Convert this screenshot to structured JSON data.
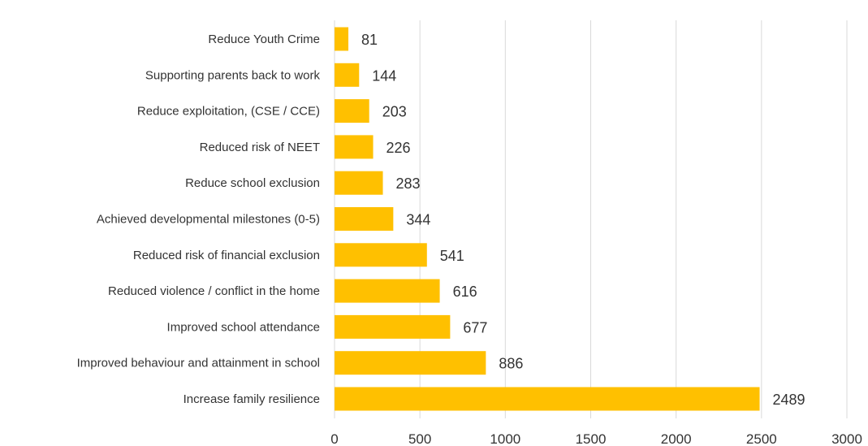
{
  "chart_data": {
    "type": "bar",
    "orientation": "horizontal",
    "categories": [
      "Reduce Youth Crime",
      "Supporting parents back to work",
      "Reduce exploitation, (CSE / CCE)",
      "Reduced risk of NEET",
      "Reduce school exclusion",
      "Achieved developmental milestones (0-5)",
      "Reduced risk of financial exclusion",
      "Reduced violence / conflict in the home",
      "Improved school attendance",
      "Improved behaviour and attainment in school",
      "Increase family resilience"
    ],
    "values": [
      81,
      144,
      203,
      226,
      283,
      344,
      541,
      616,
      677,
      886,
      2489
    ],
    "value_labels": [
      "81",
      "144",
      "203",
      "226",
      "283",
      "344",
      "541",
      "616",
      "677",
      "886",
      "2489"
    ],
    "xticks": [
      0,
      500,
      1000,
      1500,
      2000,
      2500,
      3000
    ],
    "xtick_labels": [
      "0",
      "500",
      "1000",
      "1500",
      "2000",
      "2500",
      "3000"
    ],
    "xlim": [
      0,
      3000
    ],
    "title": "",
    "xlabel": "",
    "ylabel": "",
    "grid": "vertical",
    "legend": "none",
    "bar_color": "#ffc000"
  }
}
